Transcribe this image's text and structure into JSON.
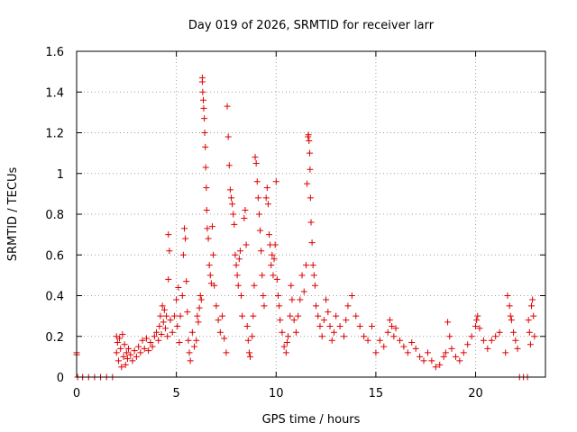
{
  "chart_data": {
    "type": "scatter",
    "title": "Day 019 of 2026, SRMTID for receiver larr",
    "xlabel": "GPS time / hours",
    "ylabel": "SRMTID / TECUs",
    "xlim": [
      0,
      23.5
    ],
    "ylim": [
      0,
      1.6
    ],
    "xticks": [
      0,
      5,
      10,
      15,
      20
    ],
    "xtick_labels": [
      "0",
      "5",
      "10",
      "15",
      "20"
    ],
    "yticks": [
      0,
      0.2,
      0.4,
      0.6,
      0.8,
      1.0,
      1.2,
      1.4,
      1.6
    ],
    "ytick_labels": [
      "0",
      "0.2",
      "0.4",
      "0.6",
      "0.8",
      "1",
      "1.2",
      "1.4",
      "1.6"
    ],
    "grid": true,
    "marker": "+",
    "marker_color": "#dd0000",
    "series": [
      {
        "name": "SRMTID",
        "points": [
          [
            0.0,
            0.11
          ],
          [
            0.0,
            0.12
          ],
          [
            0.05,
            0.0
          ],
          [
            0.3,
            0.0
          ],
          [
            0.6,
            0.0
          ],
          [
            0.9,
            0.0
          ],
          [
            1.2,
            0.0
          ],
          [
            1.5,
            0.0
          ],
          [
            1.8,
            0.0
          ],
          [
            2.0,
            0.2
          ],
          [
            2.0,
            0.12
          ],
          [
            2.05,
            0.17
          ],
          [
            2.1,
            0.08
          ],
          [
            2.15,
            0.19
          ],
          [
            2.2,
            0.14
          ],
          [
            2.25,
            0.05
          ],
          [
            2.3,
            0.21
          ],
          [
            2.35,
            0.1
          ],
          [
            2.4,
            0.16
          ],
          [
            2.45,
            0.06
          ],
          [
            2.5,
            0.12
          ],
          [
            2.55,
            0.09
          ],
          [
            2.6,
            0.14
          ],
          [
            2.7,
            0.11
          ],
          [
            2.8,
            0.08
          ],
          [
            2.9,
            0.13
          ],
          [
            3.0,
            0.1
          ],
          [
            3.1,
            0.15
          ],
          [
            3.2,
            0.12
          ],
          [
            3.3,
            0.18
          ],
          [
            3.4,
            0.14
          ],
          [
            3.5,
            0.19
          ],
          [
            3.6,
            0.13
          ],
          [
            3.7,
            0.17
          ],
          [
            3.8,
            0.15
          ],
          [
            3.9,
            0.2
          ],
          [
            4.0,
            0.22
          ],
          [
            4.1,
            0.18
          ],
          [
            4.15,
            0.25
          ],
          [
            4.2,
            0.3
          ],
          [
            4.25,
            0.21
          ],
          [
            4.3,
            0.35
          ],
          [
            4.35,
            0.27
          ],
          [
            4.4,
            0.33
          ],
          [
            4.45,
            0.24
          ],
          [
            4.5,
            0.3
          ],
          [
            4.55,
            0.2
          ],
          [
            4.6,
            0.7
          ],
          [
            4.6,
            0.48
          ],
          [
            4.65,
            0.62
          ],
          [
            4.7,
            0.28
          ],
          [
            4.8,
            0.22
          ],
          [
            4.9,
            0.3
          ],
          [
            5.0,
            0.38
          ],
          [
            5.05,
            0.25
          ],
          [
            5.1,
            0.44
          ],
          [
            5.15,
            0.17
          ],
          [
            5.2,
            0.3
          ],
          [
            5.3,
            0.4
          ],
          [
            5.35,
            0.6
          ],
          [
            5.4,
            0.73
          ],
          [
            5.45,
            0.68
          ],
          [
            5.5,
            0.47
          ],
          [
            5.55,
            0.32
          ],
          [
            5.6,
            0.18
          ],
          [
            5.65,
            0.12
          ],
          [
            5.7,
            0.08
          ],
          [
            5.8,
            0.22
          ],
          [
            5.9,
            0.15
          ],
          [
            6.0,
            0.18
          ],
          [
            6.05,
            0.3
          ],
          [
            6.1,
            0.27
          ],
          [
            6.15,
            0.34
          ],
          [
            6.2,
            0.4
          ],
          [
            6.25,
            0.38
          ],
          [
            6.3,
            1.47
          ],
          [
            6.3,
            1.45
          ],
          [
            6.32,
            1.4
          ],
          [
            6.35,
            1.36
          ],
          [
            6.37,
            1.32
          ],
          [
            6.4,
            1.27
          ],
          [
            6.42,
            1.2
          ],
          [
            6.45,
            1.13
          ],
          [
            6.47,
            1.03
          ],
          [
            6.5,
            0.93
          ],
          [
            6.52,
            0.82
          ],
          [
            6.55,
            0.73
          ],
          [
            6.6,
            0.68
          ],
          [
            6.65,
            0.55
          ],
          [
            6.7,
            0.5
          ],
          [
            6.75,
            0.46
          ],
          [
            6.8,
            0.74
          ],
          [
            6.85,
            0.6
          ],
          [
            6.9,
            0.45
          ],
          [
            7.0,
            0.35
          ],
          [
            7.1,
            0.28
          ],
          [
            7.2,
            0.22
          ],
          [
            7.3,
            0.3
          ],
          [
            7.4,
            0.19
          ],
          [
            7.5,
            0.12
          ],
          [
            7.55,
            1.33
          ],
          [
            7.6,
            1.18
          ],
          [
            7.65,
            1.04
          ],
          [
            7.7,
            0.92
          ],
          [
            7.75,
            0.88
          ],
          [
            7.8,
            0.85
          ],
          [
            7.85,
            0.8
          ],
          [
            7.9,
            0.75
          ],
          [
            7.95,
            0.6
          ],
          [
            8.0,
            0.55
          ],
          [
            8.05,
            0.5
          ],
          [
            8.1,
            0.45
          ],
          [
            8.15,
            0.58
          ],
          [
            8.2,
            0.62
          ],
          [
            8.25,
            0.4
          ],
          [
            8.3,
            0.3
          ],
          [
            8.4,
            0.78
          ],
          [
            8.45,
            0.82
          ],
          [
            8.5,
            0.65
          ],
          [
            8.55,
            0.25
          ],
          [
            8.6,
            0.18
          ],
          [
            8.65,
            0.12
          ],
          [
            8.7,
            0.1
          ],
          [
            8.8,
            0.2
          ],
          [
            8.85,
            0.3
          ],
          [
            8.9,
            0.45
          ],
          [
            8.95,
            1.08
          ],
          [
            9.0,
            1.05
          ],
          [
            9.05,
            0.96
          ],
          [
            9.1,
            0.88
          ],
          [
            9.15,
            0.8
          ],
          [
            9.2,
            0.72
          ],
          [
            9.25,
            0.62
          ],
          [
            9.3,
            0.5
          ],
          [
            9.35,
            0.4
          ],
          [
            9.4,
            0.35
          ],
          [
            9.5,
            0.88
          ],
          [
            9.55,
            0.93
          ],
          [
            9.6,
            0.85
          ],
          [
            9.65,
            0.7
          ],
          [
            9.7,
            0.65
          ],
          [
            9.75,
            0.55
          ],
          [
            9.8,
            0.6
          ],
          [
            9.85,
            0.5
          ],
          [
            9.9,
            0.58
          ],
          [
            9.95,
            0.65
          ],
          [
            10.0,
            0.96
          ],
          [
            10.05,
            0.48
          ],
          [
            10.1,
            0.4
          ],
          [
            10.15,
            0.35
          ],
          [
            10.2,
            0.28
          ],
          [
            10.3,
            0.22
          ],
          [
            10.4,
            0.15
          ],
          [
            10.5,
            0.12
          ],
          [
            10.55,
            0.17
          ],
          [
            10.6,
            0.2
          ],
          [
            10.7,
            0.3
          ],
          [
            10.75,
            0.45
          ],
          [
            10.8,
            0.38
          ],
          [
            10.9,
            0.28
          ],
          [
            11.0,
            0.22
          ],
          [
            11.1,
            0.3
          ],
          [
            11.2,
            0.38
          ],
          [
            11.3,
            0.5
          ],
          [
            11.4,
            0.42
          ],
          [
            11.5,
            0.55
          ],
          [
            11.55,
            0.95
          ],
          [
            11.6,
            1.18
          ],
          [
            11.62,
            1.19
          ],
          [
            11.65,
            1.16
          ],
          [
            11.68,
            1.1
          ],
          [
            11.7,
            1.02
          ],
          [
            11.72,
            0.88
          ],
          [
            11.75,
            0.76
          ],
          [
            11.8,
            0.66
          ],
          [
            11.85,
            0.55
          ],
          [
            11.9,
            0.5
          ],
          [
            11.95,
            0.45
          ],
          [
            12.0,
            0.35
          ],
          [
            12.1,
            0.3
          ],
          [
            12.2,
            0.25
          ],
          [
            12.3,
            0.2
          ],
          [
            12.4,
            0.28
          ],
          [
            12.5,
            0.38
          ],
          [
            12.6,
            0.32
          ],
          [
            12.7,
            0.25
          ],
          [
            12.8,
            0.18
          ],
          [
            12.9,
            0.22
          ],
          [
            13.0,
            0.3
          ],
          [
            13.2,
            0.25
          ],
          [
            13.4,
            0.2
          ],
          [
            13.5,
            0.28
          ],
          [
            13.6,
            0.35
          ],
          [
            13.8,
            0.4
          ],
          [
            14.0,
            0.3
          ],
          [
            14.2,
            0.25
          ],
          [
            14.4,
            0.2
          ],
          [
            14.6,
            0.18
          ],
          [
            14.8,
            0.25
          ],
          [
            15.0,
            0.12
          ],
          [
            15.2,
            0.18
          ],
          [
            15.4,
            0.15
          ],
          [
            15.6,
            0.22
          ],
          [
            15.7,
            0.28
          ],
          [
            15.8,
            0.25
          ],
          [
            15.9,
            0.2
          ],
          [
            16.0,
            0.24
          ],
          [
            16.2,
            0.18
          ],
          [
            16.4,
            0.15
          ],
          [
            16.6,
            0.12
          ],
          [
            16.8,
            0.17
          ],
          [
            17.0,
            0.14
          ],
          [
            17.2,
            0.1
          ],
          [
            17.4,
            0.08
          ],
          [
            17.6,
            0.12
          ],
          [
            17.8,
            0.08
          ],
          [
            18.0,
            0.05
          ],
          [
            18.2,
            0.06
          ],
          [
            18.4,
            0.1
          ],
          [
            18.5,
            0.12
          ],
          [
            18.6,
            0.27
          ],
          [
            18.7,
            0.2
          ],
          [
            18.8,
            0.14
          ],
          [
            19.0,
            0.1
          ],
          [
            19.2,
            0.08
          ],
          [
            19.4,
            0.12
          ],
          [
            19.6,
            0.16
          ],
          [
            19.8,
            0.2
          ],
          [
            20.0,
            0.25
          ],
          [
            20.05,
            0.28
          ],
          [
            20.1,
            0.3
          ],
          [
            20.2,
            0.24
          ],
          [
            20.4,
            0.18
          ],
          [
            20.6,
            0.14
          ],
          [
            20.8,
            0.18
          ],
          [
            21.0,
            0.2
          ],
          [
            21.2,
            0.22
          ],
          [
            21.5,
            0.12
          ],
          [
            21.6,
            0.4
          ],
          [
            21.7,
            0.35
          ],
          [
            21.75,
            0.3
          ],
          [
            21.8,
            0.28
          ],
          [
            21.9,
            0.22
          ],
          [
            22.0,
            0.18
          ],
          [
            22.1,
            0.14
          ],
          [
            22.2,
            0.0
          ],
          [
            22.4,
            0.0
          ],
          [
            22.6,
            0.0
          ],
          [
            22.65,
            0.28
          ],
          [
            22.7,
            0.22
          ],
          [
            22.75,
            0.16
          ],
          [
            22.8,
            0.35
          ],
          [
            22.85,
            0.38
          ],
          [
            22.9,
            0.3
          ],
          [
            22.95,
            0.2
          ]
        ]
      }
    ]
  }
}
